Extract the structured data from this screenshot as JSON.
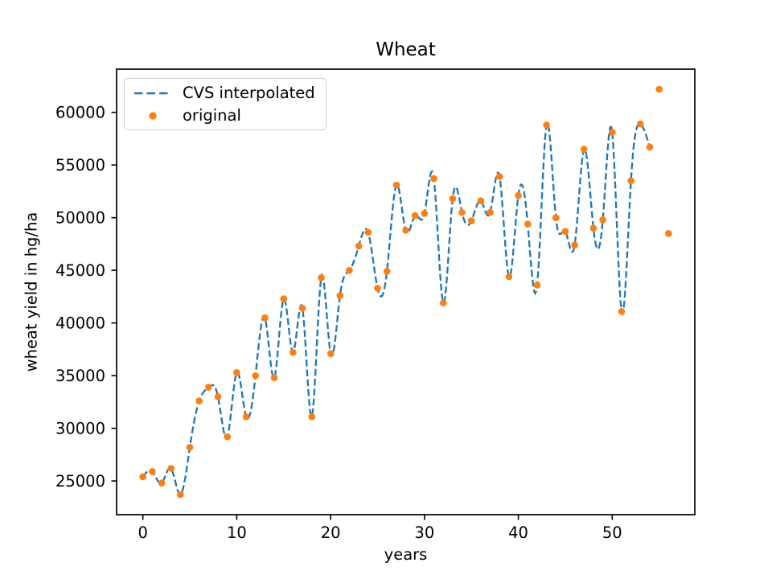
{
  "figure": {
    "title": "Wheat"
  },
  "chart_data": {
    "type": "line",
    "title": "Wheat",
    "xlabel": "years",
    "ylabel": "wheat yield in hg/ha",
    "xlim": [
      -2.8,
      58.8
    ],
    "ylim": [
      21800,
      64100
    ],
    "xticks": [
      0,
      10,
      20,
      30,
      40,
      50
    ],
    "yticks": [
      25000,
      30000,
      35000,
      40000,
      45000,
      50000,
      55000,
      60000
    ],
    "grid": false,
    "x": [
      0,
      1,
      2,
      3,
      4,
      5,
      6,
      7,
      8,
      9,
      10,
      11,
      12,
      13,
      14,
      15,
      16,
      17,
      18,
      19,
      20,
      21,
      22,
      23,
      24,
      25,
      26,
      27,
      28,
      29,
      30,
      31,
      32,
      33,
      34,
      35,
      36,
      37,
      38,
      39,
      40,
      41,
      42,
      43,
      44,
      45,
      46,
      47,
      48,
      49,
      50,
      51,
      52,
      53,
      54,
      55,
      56
    ],
    "series": [
      {
        "name": "CVS interpolated",
        "render": "dashed-cubic-spline-line",
        "color": "#1f77b4",
        "interpolates": "original",
        "x_start": 0,
        "x_end": 54
      },
      {
        "name": "original",
        "render": "scatter",
        "color": "#ff7f0e",
        "values": [
          25400,
          25900,
          24800,
          26200,
          23700,
          28200,
          32600,
          33900,
          33000,
          29200,
          35300,
          31100,
          35000,
          40500,
          34800,
          42300,
          37200,
          41400,
          31100,
          44300,
          37100,
          42600,
          45000,
          47300,
          48600,
          43300,
          44900,
          53100,
          48800,
          50200,
          50400,
          53700,
          41900,
          51800,
          50500,
          49700,
          51600,
          50500,
          53900,
          44400,
          52100,
          49400,
          43600,
          58800,
          50000,
          48700,
          47400,
          56500,
          49000,
          49800,
          58100,
          41100,
          53500,
          58900,
          56700,
          62200,
          48500
        ]
      }
    ],
    "legend": {
      "position": "upper left",
      "entries": [
        {
          "label": "CVS interpolated",
          "marker": "dashed-line",
          "color": "#1f77b4"
        },
        {
          "label": "original",
          "marker": "dot",
          "color": "#ff7f0e"
        }
      ]
    },
    "axis_color": "#000000",
    "background": "#ffffff"
  }
}
